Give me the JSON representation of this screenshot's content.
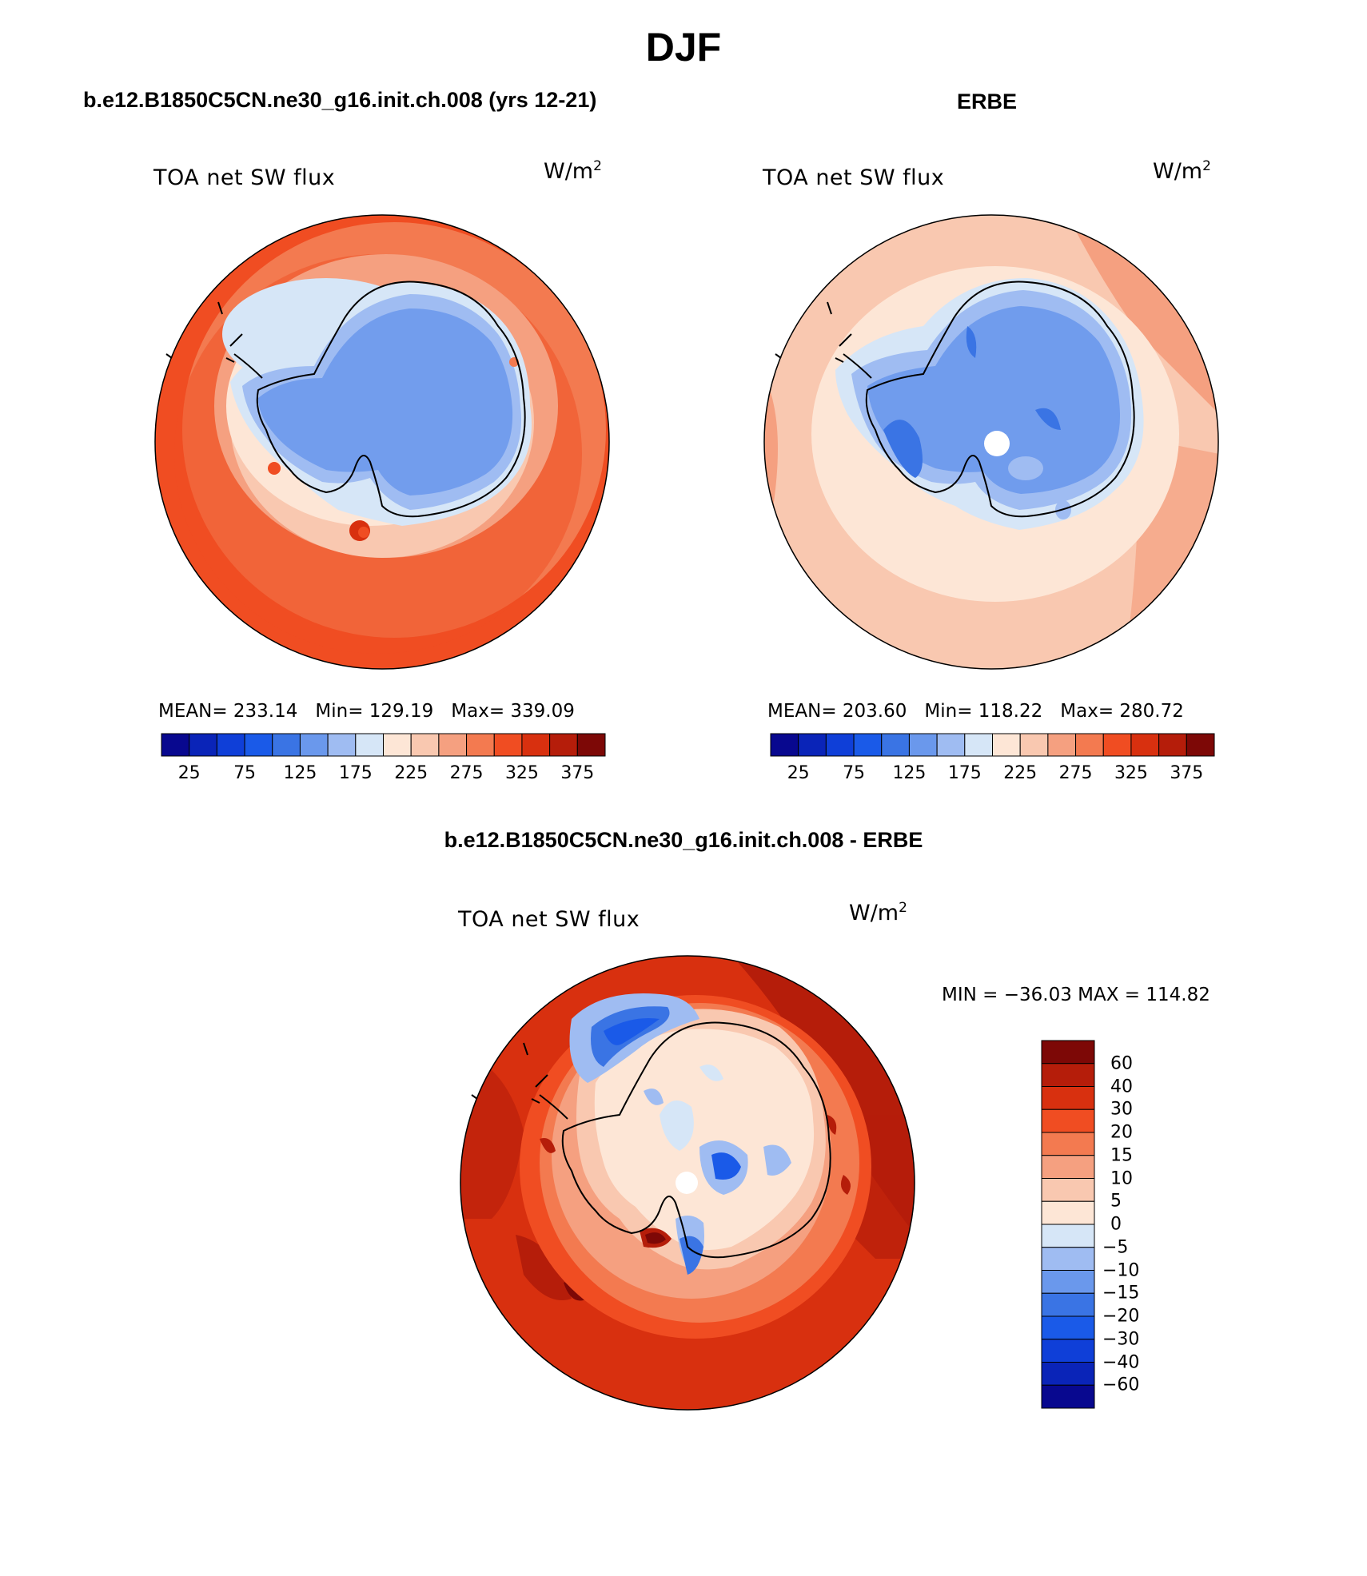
{
  "title": "DJF",
  "panels": [
    {
      "title": "b.e12.B1850C5CN.ne30_g16.init.ch.008 (yrs 12-21)",
      "field_label": "TOA net SW flux",
      "unit": "W/m",
      "unit_sup": "2",
      "stats": {
        "mean": "MEAN= 233.14",
        "min": "Min= 129.19",
        "max": "Max= 339.09"
      }
    },
    {
      "title": "ERBE",
      "field_label": "TOA net SW flux",
      "unit": "W/m",
      "unit_sup": "2",
      "stats": {
        "mean": "MEAN= 203.60",
        "min": "Min= 118.22",
        "max": "Max= 280.72"
      }
    },
    {
      "title": "b.e12.B1850C5CN.ne30_g16.init.ch.008 - ERBE",
      "field_label": "TOA net SW flux",
      "unit": "W/m",
      "unit_sup": "2",
      "stats": {
        "minmax": "MIN = −36.03 MAX = 114.82"
      }
    }
  ],
  "colorbar_abs": {
    "colors": [
      "#08088f",
      "#0a24b8",
      "#0f3fd8",
      "#1a5ae8",
      "#3a74e4",
      "#6a98ec",
      "#9fbcf2",
      "#d6e6f7",
      "#fde6d6",
      "#f9c8b0",
      "#f5a080",
      "#f37a50",
      "#f04d22",
      "#d8300f",
      "#b51d0a",
      "#7d0806"
    ],
    "tick_labels": [
      "25",
      "75",
      "125",
      "175",
      "225",
      "275",
      "325",
      "375"
    ]
  },
  "colorbar_diff": {
    "colors": [
      "#08088f",
      "#0a24b8",
      "#0f3fd8",
      "#1a5ae8",
      "#3a74e4",
      "#6a98ec",
      "#9fbcf2",
      "#d6e6f7",
      "#fde6d6",
      "#f9c8b0",
      "#f5a080",
      "#f37a50",
      "#f04d22",
      "#d8300f",
      "#b51d0a",
      "#7d0806"
    ],
    "tick_labels": [
      "60",
      "40",
      "30",
      "20",
      "15",
      "10",
      "5",
      "0",
      "−5",
      "−10",
      "−15",
      "−20",
      "−30",
      "−40",
      "−60"
    ]
  },
  "chart_data": [
    {
      "type": "heatmap",
      "projection": "south polar stereographic",
      "season": "DJF",
      "title": "b.e12.B1850C5CN.ne30_g16.init.ch.008 (yrs 12-21)",
      "variable": "TOA net SW flux",
      "units": "W/m2",
      "mean": 233.14,
      "min": 129.19,
      "max": 339.09,
      "contour_levels": [
        25,
        50,
        75,
        100,
        125,
        150,
        175,
        200,
        225,
        250,
        275,
        300,
        325,
        350,
        375
      ]
    },
    {
      "type": "heatmap",
      "projection": "south polar stereographic",
      "season": "DJF",
      "title": "ERBE",
      "variable": "TOA net SW flux",
      "units": "W/m2",
      "mean": 203.6,
      "min": 118.22,
      "max": 280.72,
      "contour_levels": [
        25,
        50,
        75,
        100,
        125,
        150,
        175,
        200,
        225,
        250,
        275,
        300,
        325,
        350,
        375
      ]
    },
    {
      "type": "heatmap",
      "projection": "south polar stereographic",
      "season": "DJF",
      "title": "b.e12.B1850C5CN.ne30_g16.init.ch.008 - ERBE",
      "variable": "TOA net SW flux",
      "units": "W/m2",
      "min": -36.03,
      "max": 114.82,
      "contour_levels": [
        -60,
        -40,
        -30,
        -20,
        -15,
        -10,
        -5,
        0,
        5,
        10,
        15,
        20,
        30,
        40,
        60
      ]
    }
  ]
}
